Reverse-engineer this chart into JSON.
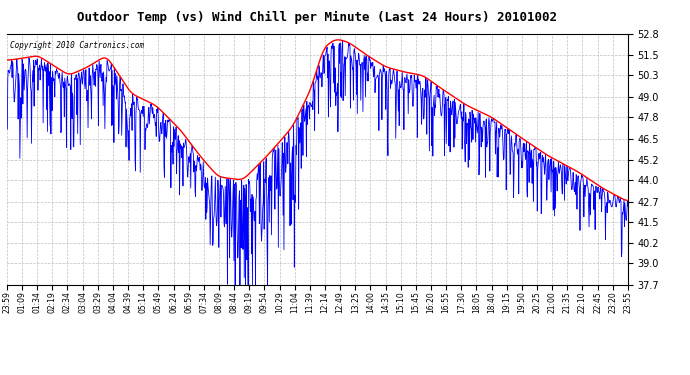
{
  "title": "Outdoor Temp (vs) Wind Chill per Minute (Last 24 Hours) 20101002",
  "copyright": "Copyright 2010 Cartronics.com",
  "background_color": "#ffffff",
  "plot_background": "#ffffff",
  "grid_color": "#b0b0b0",
  "outer_temp_color": "#ff0000",
  "wind_chill_color": "#0000ff",
  "ylim": [
    37.7,
    52.8
  ],
  "yticks": [
    37.7,
    39.0,
    40.2,
    41.5,
    42.7,
    44.0,
    45.2,
    46.5,
    47.8,
    49.0,
    50.3,
    51.5,
    52.8
  ],
  "xtick_labels": [
    "23:59",
    "01:09",
    "01:34",
    "02:19",
    "02:34",
    "03:04",
    "03:29",
    "04:04",
    "04:39",
    "05:14",
    "05:49",
    "06:24",
    "06:59",
    "07:34",
    "08:09",
    "08:44",
    "09:19",
    "09:54",
    "10:29",
    "11:04",
    "11:39",
    "12:14",
    "12:49",
    "13:25",
    "14:00",
    "14:35",
    "15:10",
    "15:45",
    "16:20",
    "16:55",
    "17:30",
    "18:05",
    "18:40",
    "19:15",
    "19:50",
    "20:25",
    "21:00",
    "21:35",
    "22:10",
    "22:45",
    "23:20",
    "23:55"
  ],
  "outdoor_keypoints_t": [
    0,
    0.02,
    0.05,
    0.07,
    0.1,
    0.13,
    0.16,
    0.2,
    0.24,
    0.28,
    0.31,
    0.34,
    0.38,
    0.42,
    0.46,
    0.49,
    0.51,
    0.53,
    0.55,
    0.58,
    0.61,
    0.64,
    0.67,
    0.7,
    0.74,
    0.78,
    0.83,
    0.87,
    0.92,
    0.96,
    1.0
  ],
  "outdoor_keypoints_v": [
    51.2,
    51.3,
    51.5,
    51.0,
    50.3,
    50.8,
    51.5,
    49.2,
    48.5,
    47.0,
    45.5,
    44.2,
    44.0,
    45.5,
    47.2,
    49.5,
    52.0,
    52.5,
    52.3,
    51.5,
    50.8,
    50.5,
    50.3,
    49.5,
    48.5,
    47.8,
    46.5,
    45.5,
    44.5,
    43.5,
    42.7
  ]
}
